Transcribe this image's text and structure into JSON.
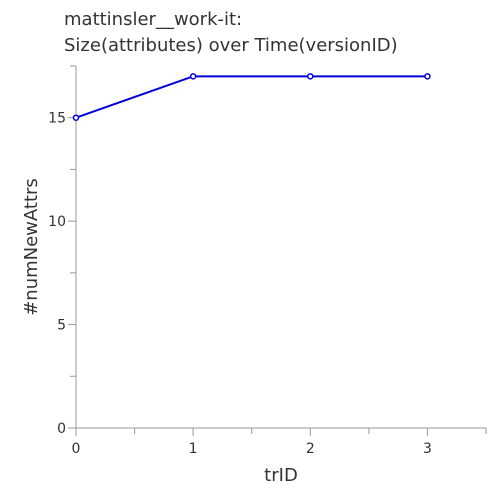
{
  "chart_data": {
    "type": "line",
    "title_lines": [
      "mattinsler__work-it:",
      "Size(attributes) over Time(versionID)"
    ],
    "xlabel": "trID",
    "ylabel": "#numNewAttrs",
    "x": [
      0,
      1,
      2,
      3
    ],
    "series": [
      {
        "values": [
          15,
          17,
          17,
          17
        ]
      }
    ],
    "xlim": [
      0,
      3.5
    ],
    "ylim": [
      0,
      17.5
    ],
    "x_ticks": [
      0,
      1,
      2,
      3
    ],
    "x_minor_ticks": [
      0.5,
      1.5,
      2.5,
      3.5
    ],
    "y_ticks": [
      0,
      5,
      10,
      15
    ],
    "y_minor_ticks": [
      2.5,
      7.5,
      12.5,
      17.5
    ],
    "grid": false,
    "line_color": "#0000dd",
    "axis_color": "#999999",
    "text_color": "#333333"
  }
}
